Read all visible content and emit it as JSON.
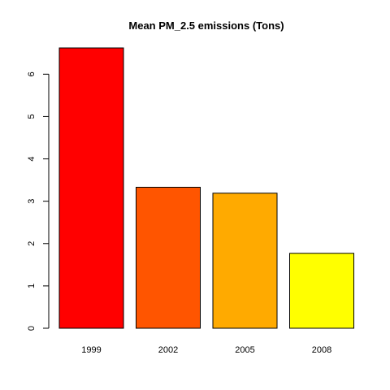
{
  "chart_data": {
    "type": "bar",
    "title": "Mean PM_2.5 emissions (Tons)",
    "xlabel": "",
    "ylabel": "",
    "categories": [
      "1999",
      "2002",
      "2005",
      "2008"
    ],
    "values": [
      6.62,
      3.33,
      3.19,
      1.77
    ],
    "colors": [
      "#FF0000",
      "#FF5500",
      "#FFAA00",
      "#FFFF00"
    ],
    "ylim": [
      0,
      6.62
    ],
    "yticks": [
      0,
      1,
      2,
      3,
      4,
      5,
      6
    ],
    "ytick_labels": [
      "0",
      "1",
      "2",
      "3",
      "4",
      "5",
      "6"
    ],
    "grid": false,
    "legend": "none",
    "bar_border_color": "#000000"
  }
}
